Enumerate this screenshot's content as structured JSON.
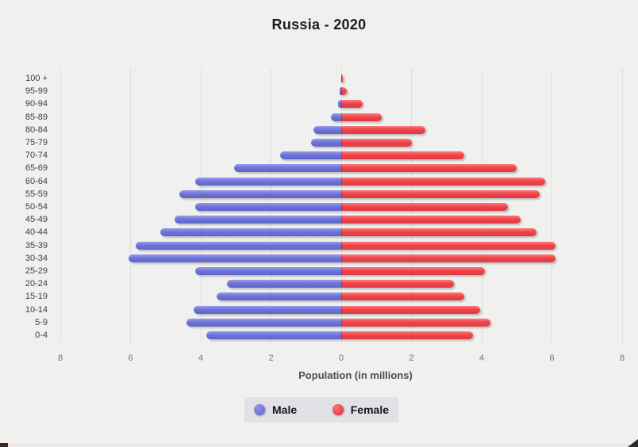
{
  "title": "Russia - 2020",
  "x_axis": {
    "label": "Population (in millions)",
    "ticks": [
      "8",
      "6",
      "4",
      "2",
      "0",
      "2",
      "4",
      "6",
      "8"
    ],
    "tick_values": [
      -8,
      -6,
      -4,
      -2,
      0,
      2,
      4,
      6,
      8
    ]
  },
  "legend": {
    "male_label": "Male",
    "female_label": "Female"
  },
  "colors": {
    "male": "#6e74d8",
    "female": "#f1434b",
    "background": "#f0f0ee",
    "gridline": "#dcdee0",
    "legend_background": "#e2e2e6"
  },
  "chart_data": {
    "type": "bar",
    "subtype": "population-pyramid",
    "title": "Russia - 2020",
    "xlabel": "Population (in millions)",
    "ylabel": "",
    "categories": [
      "100 +",
      "95-99",
      "90-94",
      "85-89",
      "80-84",
      "75-79",
      "70-74",
      "65-69",
      "60-64",
      "55-59",
      "50-54",
      "45-49",
      "40-44",
      "35-39",
      "30-34",
      "25-29",
      "20-24",
      "15-19",
      "10-14",
      "5-9",
      "0-4"
    ],
    "series": [
      {
        "name": "Male",
        "color": "#6e74d8",
        "side": "left",
        "values": [
          0.01,
          0.04,
          0.1,
          0.3,
          0.8,
          0.85,
          1.75,
          3.05,
          4.15,
          4.6,
          4.15,
          4.75,
          5.15,
          5.85,
          6.05,
          4.15,
          3.25,
          3.55,
          4.2,
          4.4,
          3.85
        ]
      },
      {
        "name": "Female",
        "color": "#f1434b",
        "side": "right",
        "values": [
          0.04,
          0.15,
          0.6,
          1.15,
          2.4,
          2.0,
          3.5,
          5.0,
          5.8,
          5.65,
          4.75,
          5.1,
          5.55,
          6.1,
          6.1,
          4.1,
          3.2,
          3.5,
          3.95,
          4.25,
          3.75
        ]
      }
    ],
    "xlim": [
      -8,
      8
    ],
    "unit": "millions",
    "grid": true,
    "legend_position": "bottom"
  }
}
